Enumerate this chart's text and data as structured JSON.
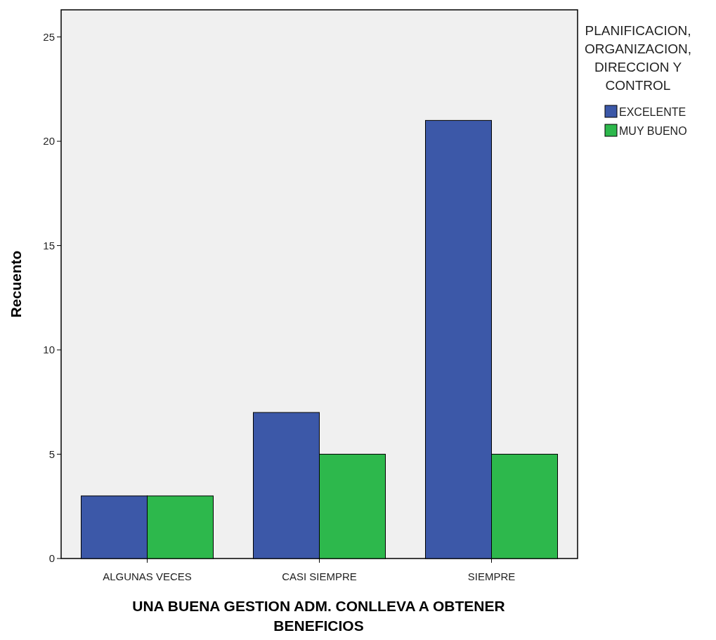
{
  "chart_data": {
    "type": "bar",
    "xlabel": "UNA BUENA GESTION ADM. CONLLEVA A OBTENER BENEFICIOS",
    "ylabel": "Recuento",
    "legend_title": "PLANIFICACION, ORGANIZACION, DIRECCION Y CONTROL",
    "categories": [
      "ALGUNAS VECES",
      "CASI SIEMPRE",
      "SIEMPRE"
    ],
    "series": [
      {
        "name": "EXCELENTE",
        "color": "#3c58a8",
        "values": [
          3,
          7,
          21
        ]
      },
      {
        "name": "MUY BUENO",
        "color": "#2db84c",
        "values": [
          3,
          5,
          5
        ]
      }
    ],
    "ylim": [
      0,
      26.3
    ],
    "yticks": [
      0,
      5,
      10,
      15,
      20,
      25
    ],
    "grid": false,
    "legend": "top right"
  }
}
